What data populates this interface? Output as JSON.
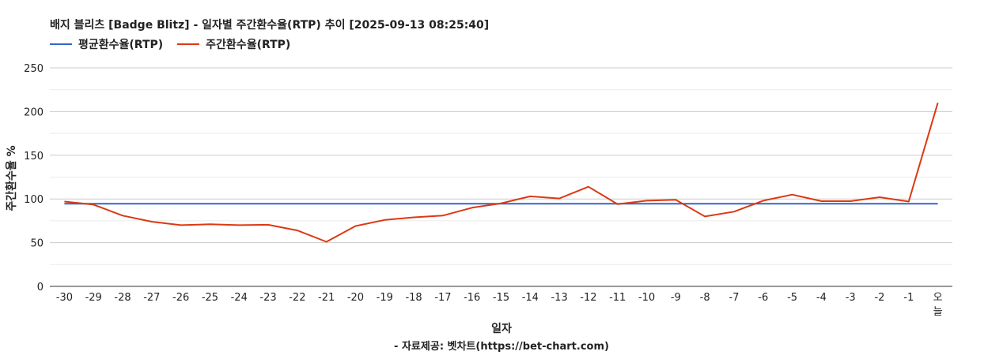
{
  "chart_data": {
    "type": "line",
    "title": "배지 블리츠 [Badge Blitz] - 일자별 주간환수율(RTP) 추이 [2025-09-13 08:25:40]",
    "xlabel": "일자",
    "ylabel": "주간환수율 %",
    "source": "- 자료제공: 벳차트(https://bet-chart.com)",
    "categories": [
      "-30",
      "-29",
      "-28",
      "-27",
      "-26",
      "-25",
      "-24",
      "-23",
      "-22",
      "-21",
      "-20",
      "-19",
      "-18",
      "-17",
      "-16",
      "-15",
      "-14",
      "-13",
      "-12",
      "-11",
      "-10",
      "-9",
      "-8",
      "-7",
      "-6",
      "-5",
      "-4",
      "-3",
      "-2",
      "-1",
      "오늘"
    ],
    "ylim": [
      0,
      250
    ],
    "yticks": [
      0,
      50,
      100,
      150,
      200,
      250
    ],
    "grid": true,
    "legend_position": "top-left",
    "series": [
      {
        "name": "평균환수율(RTP)",
        "color": "#3366cc",
        "values": [
          94.5,
          94.5,
          94.5,
          94.5,
          94.5,
          94.5,
          94.5,
          94.5,
          94.5,
          94.5,
          94.5,
          94.5,
          94.5,
          94.5,
          94.5,
          94.5,
          94.5,
          94.5,
          94.5,
          94.5,
          94.5,
          94.5,
          94.5,
          94.5,
          94.5,
          94.5,
          94.5,
          94.5,
          94.5,
          94.5,
          94.5
        ]
      },
      {
        "name": "주간환수율(RTP)",
        "color": "#dc3912",
        "values": [
          97,
          93.5,
          81,
          74,
          70,
          71,
          70,
          70.5,
          64,
          51,
          69,
          76,
          79,
          81,
          90,
          95,
          103,
          100.5,
          114,
          94,
          98,
          99,
          80,
          85.5,
          98,
          105,
          97.5,
          97.5,
          102,
          97,
          210
        ]
      }
    ]
  }
}
